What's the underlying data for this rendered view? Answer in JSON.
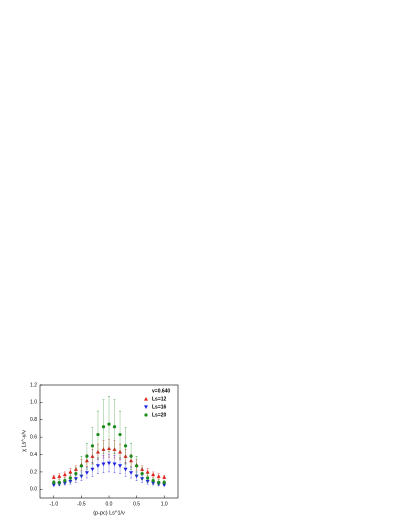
{
  "chart_data": {
    "type": "scatter",
    "x_label": "(p-pc) Ls^1/ν",
    "y_label": "χ Ls^-γ/ν",
    "annotation": "v=0.640",
    "x": [
      -1,
      -0.9,
      -0.8,
      -0.7,
      -0.6,
      -0.5,
      -0.4,
      -0.3,
      -0.2,
      -0.1,
      0,
      0.1,
      0.2,
      0.3,
      0.4,
      0.5,
      0.6,
      0.7,
      0.8,
      0.9,
      1
    ],
    "series": [
      {
        "name": "Ls=12",
        "color": "#e0201b",
        "marker": "triangle-up",
        "values": [
          0.14,
          0.15,
          0.17,
          0.2,
          0.23,
          0.28,
          0.33,
          0.38,
          0.43,
          0.46,
          0.47,
          0.46,
          0.43,
          0.38,
          0.33,
          0.28,
          0.23,
          0.2,
          0.17,
          0.15,
          0.14
        ],
        "errors": [
          0.02,
          0.03,
          0.03,
          0.04,
          0.04,
          0.06,
          0.07,
          0.08,
          0.09,
          0.1,
          0.1,
          0.1,
          0.09,
          0.08,
          0.07,
          0.06,
          0.04,
          0.04,
          0.03,
          0.03,
          0.02
        ]
      },
      {
        "name": "Ls=16",
        "color": "#2020e0",
        "marker": "triangle-down",
        "values": [
          0.05,
          0.06,
          0.07,
          0.09,
          0.12,
          0.15,
          0.19,
          0.23,
          0.27,
          0.29,
          0.3,
          0.29,
          0.27,
          0.23,
          0.19,
          0.15,
          0.12,
          0.09,
          0.07,
          0.06,
          0.05
        ],
        "errors": [
          0.01,
          0.02,
          0.02,
          0.03,
          0.04,
          0.05,
          0.06,
          0.08,
          0.09,
          0.1,
          0.1,
          0.1,
          0.09,
          0.08,
          0.06,
          0.05,
          0.04,
          0.03,
          0.02,
          0.02,
          0.01
        ]
      },
      {
        "name": "Ls=20",
        "color": "#1a8a1a",
        "marker": "circle",
        "values": [
          0.08,
          0.08,
          0.1,
          0.13,
          0.18,
          0.27,
          0.38,
          0.5,
          0.63,
          0.72,
          0.75,
          0.72,
          0.63,
          0.5,
          0.38,
          0.27,
          0.18,
          0.13,
          0.1,
          0.08,
          0.08
        ],
        "errors": [
          0.02,
          0.03,
          0.03,
          0.05,
          0.07,
          0.11,
          0.15,
          0.21,
          0.27,
          0.31,
          0.32,
          0.31,
          0.27,
          0.21,
          0.15,
          0.11,
          0.07,
          0.05,
          0.03,
          0.03,
          0.02
        ]
      }
    ],
    "xlim": [
      -1.25,
      1.25
    ],
    "xticks": [
      -1.0,
      -0.5,
      0.0,
      0.5,
      1.0
    ],
    "ylim": [
      -0.1,
      1.2
    ],
    "yticks": [
      0.0,
      0.2,
      0.4,
      0.6,
      0.8,
      1.0,
      1.2
    ],
    "legend": "upper-right"
  }
}
